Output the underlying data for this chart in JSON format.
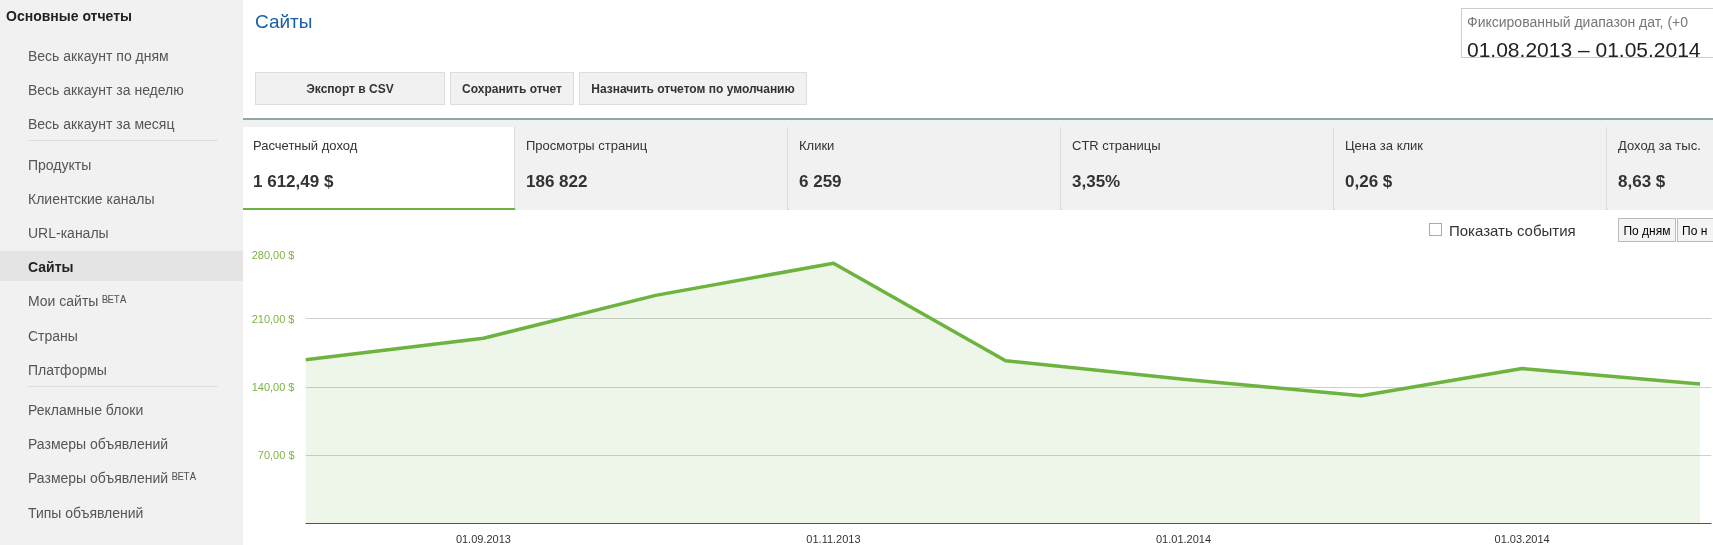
{
  "chart_data": [
    {
      "type": "other",
      "title": "Основные отчеты",
      "annotations": [
        "Весь аккаунт по дням",
        "Весь аккаунт за неделю",
        "Весь аккаунт за месяц",
        "Продукты",
        "Клиентские каналы",
        "URL-каналы",
        "Сайты",
        "Мои сайты ᴮᴱᵀᴬ",
        "Страны",
        "Платформы",
        "Рекламные блоки",
        "Размеры объявлений",
        "Размеры объявлений ᴮᴱᵀᴬ",
        "Типы объявлений"
      ]
    },
    {
      "type": "other",
      "title": "Сайты",
      "annotations": [
        "Фиксированный диапазон дат, (+0",
        "01.08.2013 – 01.05.2014",
        "Экспорт в CSV",
        "Сохранить отчет",
        "Назначить отчетом по умолчанию",
        "Расчетный доход",
        "1 612,49 $",
        "Просмотры страниц",
        "186 822",
        "Клики",
        "6 259",
        "CTR страницы",
        "3,35%",
        "Цена за клик",
        "0,26 $",
        "Доход за тыс.",
        "8,63 $",
        "Показать события",
        "По дням",
        "По н"
      ]
    },
    {
      "type": "area",
      "x": [
        "2013-08-01",
        "2013-09-01",
        "2013-10-01",
        "2013-11-01",
        "2013-12-01",
        "2014-01-01",
        "2014-02-01",
        "2014-03-01",
        "2014-04-01"
      ],
      "series": [
        {
          "color": "#6cb33f",
          "values": [
            168,
            190,
            234,
            267,
            167,
            148,
            131,
            159,
            143
          ]
        }
      ],
      "xlim": [
        "2013-08-01",
        "2014-04-03"
      ],
      "xticks": [
        {
          "value": "2013-09-01",
          "label": "01.09.2013"
        },
        {
          "value": "2013-11-01",
          "label": "01.11.2013"
        },
        {
          "value": "2014-01-01",
          "label": "01.01.2014"
        },
        {
          "value": "2014-03-01",
          "label": "01.03.2014"
        }
      ],
      "ylim": [
        0,
        280
      ],
      "yticks": [
        {
          "value": 70,
          "label": "70,00 $"
        },
        {
          "value": 140,
          "label": "140,00 $"
        },
        {
          "value": 210,
          "label": "210,00 $"
        },
        {
          "value": 280,
          "label": "280,00 $"
        }
      ],
      "grid": "y"
    }
  ]
}
